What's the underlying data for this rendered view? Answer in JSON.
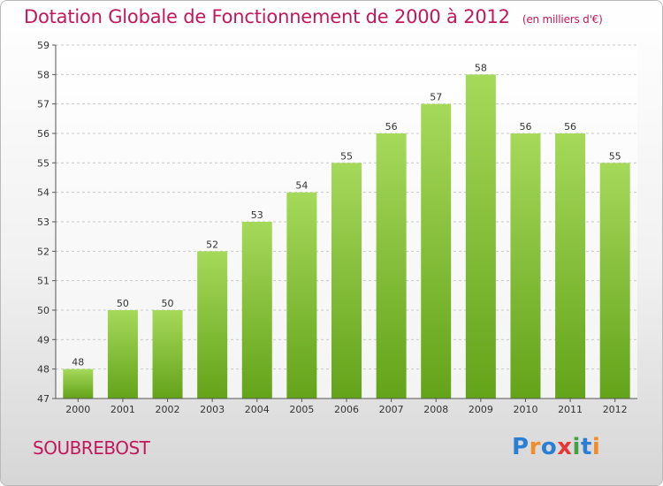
{
  "header": {
    "title": "Dotation Globale de Fonctionnement de 2000 à 2012",
    "subtitle": "(en milliers d'€)"
  },
  "footer": {
    "commune": "SOUBREBOST",
    "logo_letters": [
      {
        "char": "P",
        "color": "#2a7fd4"
      },
      {
        "char": "r",
        "color": "#f28c28"
      },
      {
        "char": "o",
        "color": "#2a7fd4"
      },
      {
        "char": "x",
        "color": "#e53935"
      },
      {
        "char": "i",
        "color": "#43a047"
      },
      {
        "char": "t",
        "color": "#2a7fd4"
      },
      {
        "char": "i",
        "color": "#f28c28"
      }
    ]
  },
  "chart_data": {
    "type": "bar",
    "title": "Dotation Globale de Fonctionnement de 2000 à 2012",
    "subtitle": "(en milliers d'€)",
    "xlabel": "",
    "ylabel": "",
    "categories": [
      "2000",
      "2001",
      "2002",
      "2003",
      "2004",
      "2005",
      "2006",
      "2007",
      "2008",
      "2009",
      "2010",
      "2011",
      "2012"
    ],
    "values": [
      48,
      50,
      50,
      52,
      53,
      54,
      55,
      56,
      57,
      58,
      56,
      56,
      55
    ],
    "ylim": [
      47,
      59
    ],
    "yticks": [
      47,
      48,
      49,
      50,
      51,
      52,
      53,
      54,
      55,
      56,
      57,
      58,
      59
    ],
    "grid": true,
    "legend": "none",
    "colors": {
      "bar_top": "#a6d95a",
      "bar_bottom": "#63a31a",
      "grid": "#c8c8c8",
      "axis": "#555555"
    }
  }
}
